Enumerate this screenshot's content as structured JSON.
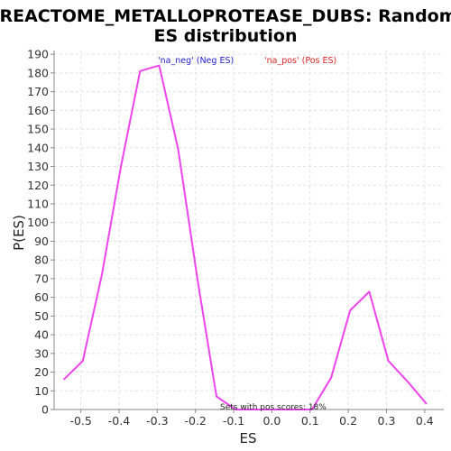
{
  "colors": {
    "neg_legend": "#2222cc",
    "pos_legend": "#dd2222",
    "curve": "#ee44ee",
    "grid": "#e2e2e2",
    "axis": "#888888"
  },
  "chart_data": {
    "type": "line",
    "title_line1": "REACTOME_METALLOPROTEASE_DUBS: Random",
    "title_line2": "ES distribution",
    "xlabel": "ES",
    "ylabel": "P(ES)",
    "xlim": [
      -0.57,
      0.45
    ],
    "ylim": [
      0,
      192
    ],
    "x_ticks": [
      -0.5,
      -0.4,
      -0.3,
      -0.2,
      -0.1,
      0.0,
      0.1,
      0.2,
      0.3,
      0.4
    ],
    "x_tick_labels": [
      "-0.5",
      "-0.4",
      "-0.3",
      "-0.2",
      "-0.1",
      "0.0",
      "0.1",
      "0.2",
      "0.3",
      "0.4"
    ],
    "y_ticks": [
      0,
      10,
      20,
      30,
      40,
      50,
      60,
      70,
      80,
      90,
      100,
      110,
      120,
      130,
      140,
      150,
      160,
      170,
      180,
      190
    ],
    "y_tick_labels": [
      "0",
      "10",
      "20",
      "30",
      "40",
      "50",
      "60",
      "70",
      "80",
      "90",
      "100",
      "110",
      "120",
      "130",
      "140",
      "150",
      "160",
      "170",
      "180",
      "190"
    ],
    "grid": true,
    "legend": [
      {
        "label": "'na_neg' (Neg ES)",
        "color": "#2222cc"
      },
      {
        "label": "'na_pos' (Pos ES)",
        "color": "#dd2222"
      }
    ],
    "legend_placement": "top",
    "annotation": "Sets with pos scores: 18%",
    "series": [
      {
        "x": [
          -0.545,
          -0.495,
          -0.445,
          -0.395,
          -0.345,
          -0.295,
          -0.245,
          -0.195,
          -0.145,
          -0.095,
          -0.045,
          0.005,
          0.055,
          0.105,
          0.155,
          0.205,
          0.255,
          0.305,
          0.355,
          0.405
        ],
        "y": [
          16,
          26,
          72,
          130,
          181,
          184,
          139,
          70,
          7,
          0,
          0,
          0,
          0,
          0,
          17,
          53,
          63,
          26,
          15,
          3
        ]
      }
    ]
  }
}
